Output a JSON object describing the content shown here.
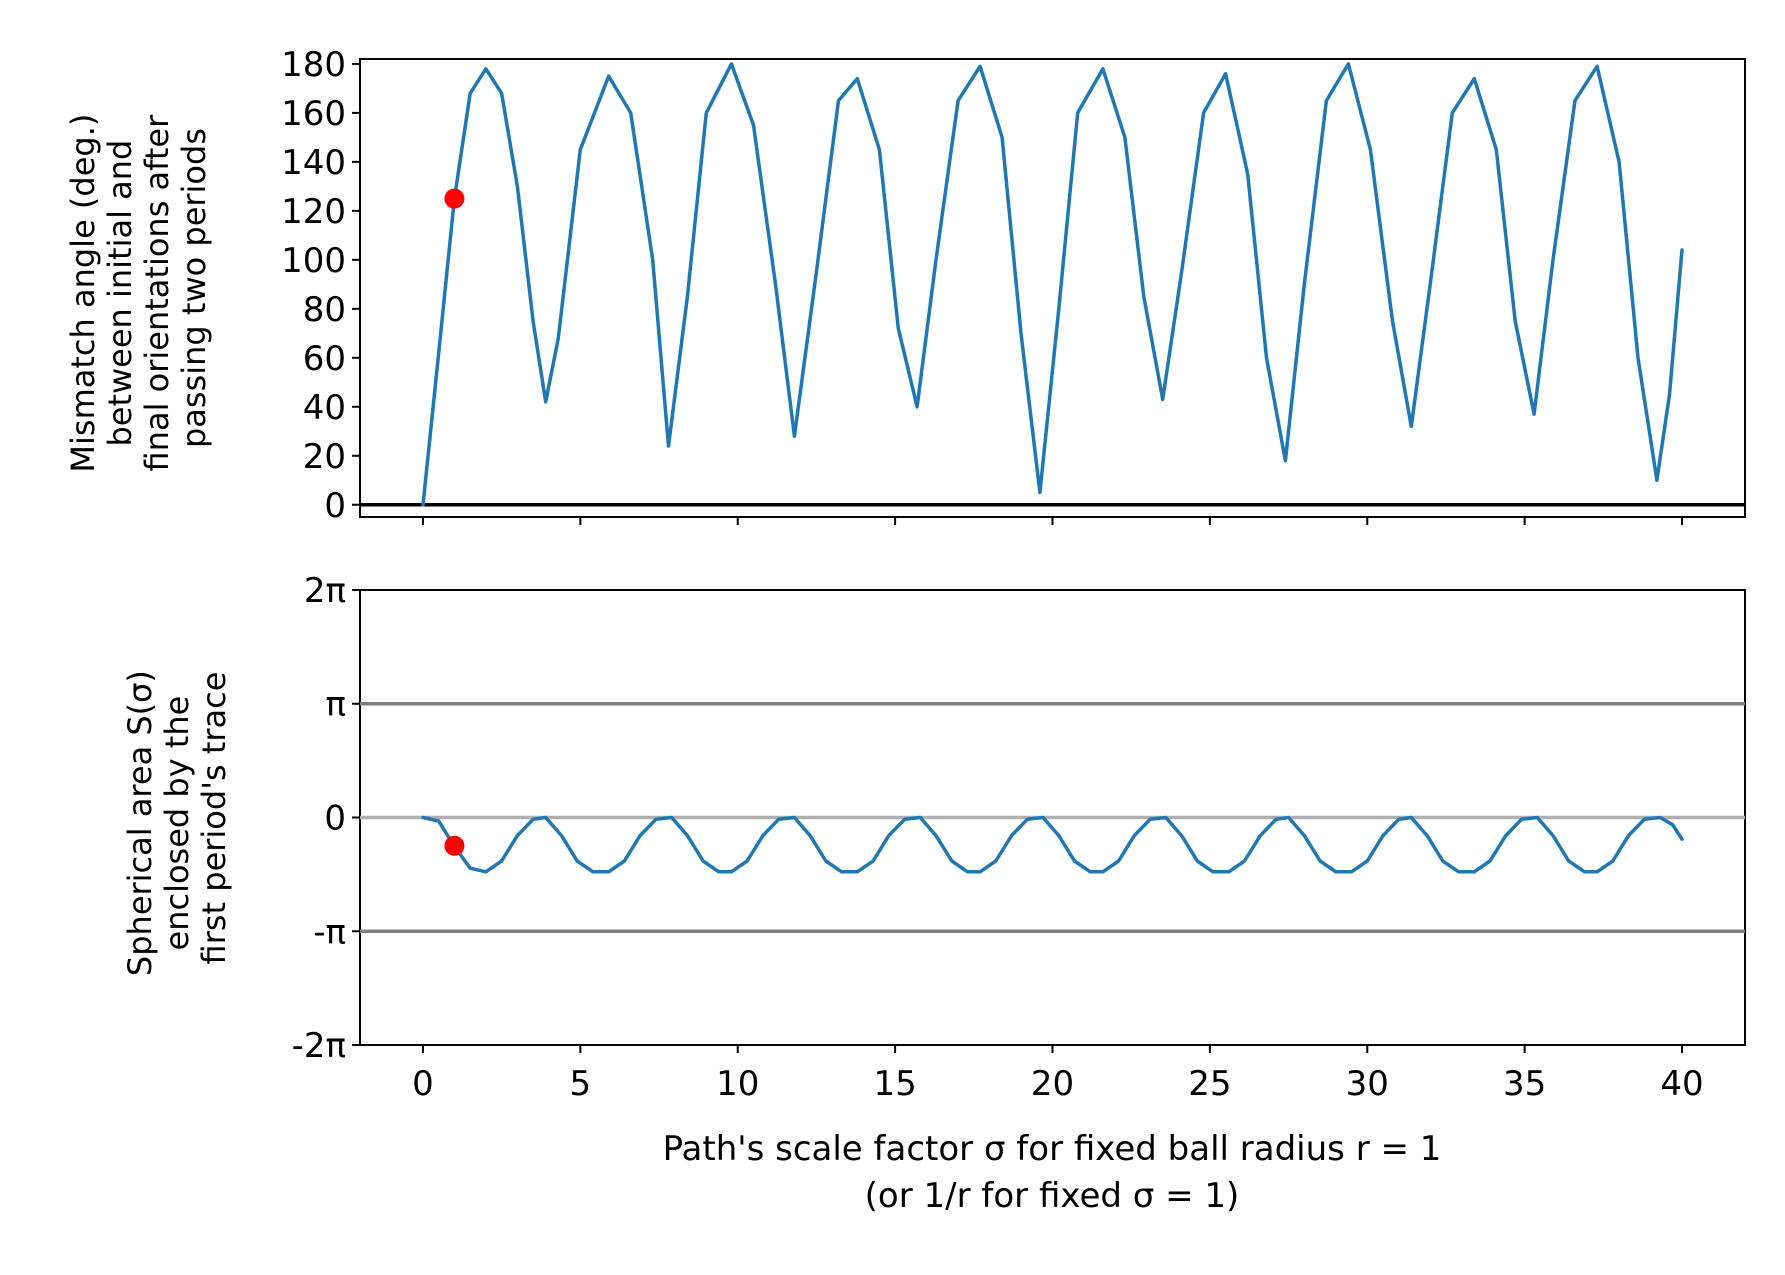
{
  "chart_data": [
    {
      "type": "line",
      "ylabel_lines": [
        "Mismatch angle (deg.)",
        "between initial and",
        "final orientations after",
        "passing two periods"
      ],
      "xlim": [
        -2,
        42
      ],
      "ylim": [
        -5,
        182
      ],
      "yticks": [
        0,
        20,
        40,
        60,
        80,
        100,
        120,
        140,
        160,
        180
      ],
      "ytick_labels": [
        "0",
        "20",
        "40",
        "60",
        "80",
        "100",
        "120",
        "140",
        "160",
        "180"
      ],
      "xticks": [
        0,
        5,
        10,
        15,
        20,
        25,
        30,
        35,
        40
      ],
      "xtick_labels_visible": false,
      "series": [
        {
          "color": "#1f77b4",
          "x": [
            0,
            0.5,
            1.0,
            1.5,
            2.0,
            2.5,
            3.0,
            3.5,
            3.9,
            4.3,
            5.0,
            5.9,
            6.6,
            7.3,
            7.8,
            8.4,
            9.0,
            9.8,
            10.5,
            11.2,
            11.8,
            12.5,
            13.2,
            13.8,
            14.5,
            15.1,
            15.7,
            16.3,
            17.0,
            17.7,
            18.4,
            19.0,
            19.6,
            20.2,
            20.8,
            21.6,
            22.3,
            22.9,
            23.5,
            24.1,
            24.8,
            25.5,
            26.2,
            26.8,
            27.4,
            28.0,
            28.7,
            29.4,
            30.1,
            30.8,
            31.4,
            32.0,
            32.7,
            33.4,
            34.1,
            34.7,
            35.3,
            35.9,
            36.6,
            37.3,
            38.0,
            38.6,
            39.2,
            39.6,
            40.0
          ],
          "y": [
            0,
            62,
            125,
            168,
            178,
            168,
            130,
            75,
            42,
            68,
            145,
            175,
            160,
            100,
            24,
            85,
            160,
            180,
            155,
            90,
            28,
            95,
            165,
            174,
            145,
            72,
            40,
            100,
            165,
            179,
            150,
            70,
            5,
            80,
            160,
            178,
            150,
            85,
            43,
            95,
            160,
            176,
            135,
            60,
            18,
            90,
            165,
            180,
            145,
            75,
            32,
            90,
            160,
            174,
            145,
            75,
            37,
            100,
            165,
            179,
            140,
            60,
            10,
            45,
            104
          ]
        }
      ],
      "markers": [
        {
          "x": 1.0,
          "y": 125,
          "color": "#ff0000"
        }
      ],
      "hlines": [
        {
          "y": 0,
          "color": "#000000"
        }
      ]
    },
    {
      "type": "line",
      "ylabel_lines": [
        "Spherical area S(σ)",
        "enclosed by the",
        "first period's trace"
      ],
      "xlabel_lines": [
        "Path's scale factor σ for fixed ball radius r = 1",
        "(or 1/r for fixed σ = 1)"
      ],
      "xlim": [
        -2,
        42
      ],
      "ylim": [
        -6.283,
        6.283
      ],
      "yticks": [
        -6.283,
        -3.1416,
        0,
        3.1416,
        6.283
      ],
      "ytick_labels": [
        "-2π",
        "-π",
        "0",
        "π",
        "2π"
      ],
      "xticks": [
        0,
        5,
        10,
        15,
        20,
        25,
        30,
        35,
        40
      ],
      "xtick_labels": [
        "0",
        "5",
        "10",
        "15",
        "20",
        "25",
        "30",
        "35",
        "40"
      ],
      "series": [
        {
          "color": "#1f77b4",
          "x": [
            0,
            0.5,
            1.0,
            1.5,
            2.0,
            2.5,
            3.0,
            3.5,
            3.9,
            4.4,
            4.9,
            5.4,
            5.9,
            6.4,
            6.9,
            7.4,
            7.9,
            8.4,
            8.9,
            9.4,
            9.8,
            10.3,
            10.8,
            11.3,
            11.8,
            12.3,
            12.8,
            13.3,
            13.8,
            14.3,
            14.8,
            15.3,
            15.8,
            16.3,
            16.8,
            17.3,
            17.7,
            18.2,
            18.7,
            19.2,
            19.7,
            20.2,
            20.7,
            21.2,
            21.6,
            22.1,
            22.6,
            23.1,
            23.6,
            24.1,
            24.6,
            25.1,
            25.6,
            26.1,
            26.6,
            27.1,
            27.5,
            28.0,
            28.5,
            29.0,
            29.5,
            30.0,
            30.5,
            31.0,
            31.4,
            31.9,
            32.4,
            32.9,
            33.4,
            33.9,
            34.4,
            34.9,
            35.4,
            35.9,
            36.4,
            36.9,
            37.3,
            37.8,
            38.3,
            38.8,
            39.3,
            39.7,
            40.0
          ],
          "y": [
            0,
            -0.1,
            -0.8,
            -1.4,
            -1.5,
            -1.2,
            -0.5,
            -0.05,
            0,
            -0.5,
            -1.2,
            -1.5,
            -1.5,
            -1.2,
            -0.5,
            -0.05,
            0,
            -0.5,
            -1.2,
            -1.5,
            -1.5,
            -1.2,
            -0.5,
            -0.05,
            0,
            -0.5,
            -1.2,
            -1.5,
            -1.5,
            -1.2,
            -0.5,
            -0.05,
            0,
            -0.5,
            -1.2,
            -1.5,
            -1.5,
            -1.2,
            -0.5,
            -0.05,
            0,
            -0.5,
            -1.2,
            -1.5,
            -1.5,
            -1.2,
            -0.5,
            -0.05,
            0,
            -0.5,
            -1.2,
            -1.5,
            -1.5,
            -1.2,
            -0.5,
            -0.05,
            0,
            -0.5,
            -1.2,
            -1.5,
            -1.5,
            -1.2,
            -0.5,
            -0.05,
            0,
            -0.5,
            -1.2,
            -1.5,
            -1.5,
            -1.2,
            -0.5,
            -0.05,
            0,
            -0.5,
            -1.2,
            -1.5,
            -1.5,
            -1.2,
            -0.5,
            -0.05,
            0,
            -0.2,
            -0.6
          ]
        }
      ],
      "markers": [
        {
          "x": 1.0,
          "y": -0.78,
          "color": "#ff0000"
        }
      ],
      "hlines": [
        {
          "y": 3.1416,
          "color": "#808080"
        },
        {
          "y": 0,
          "color": "#b0b0b0"
        },
        {
          "y": -3.1416,
          "color": "#808080"
        }
      ]
    }
  ]
}
